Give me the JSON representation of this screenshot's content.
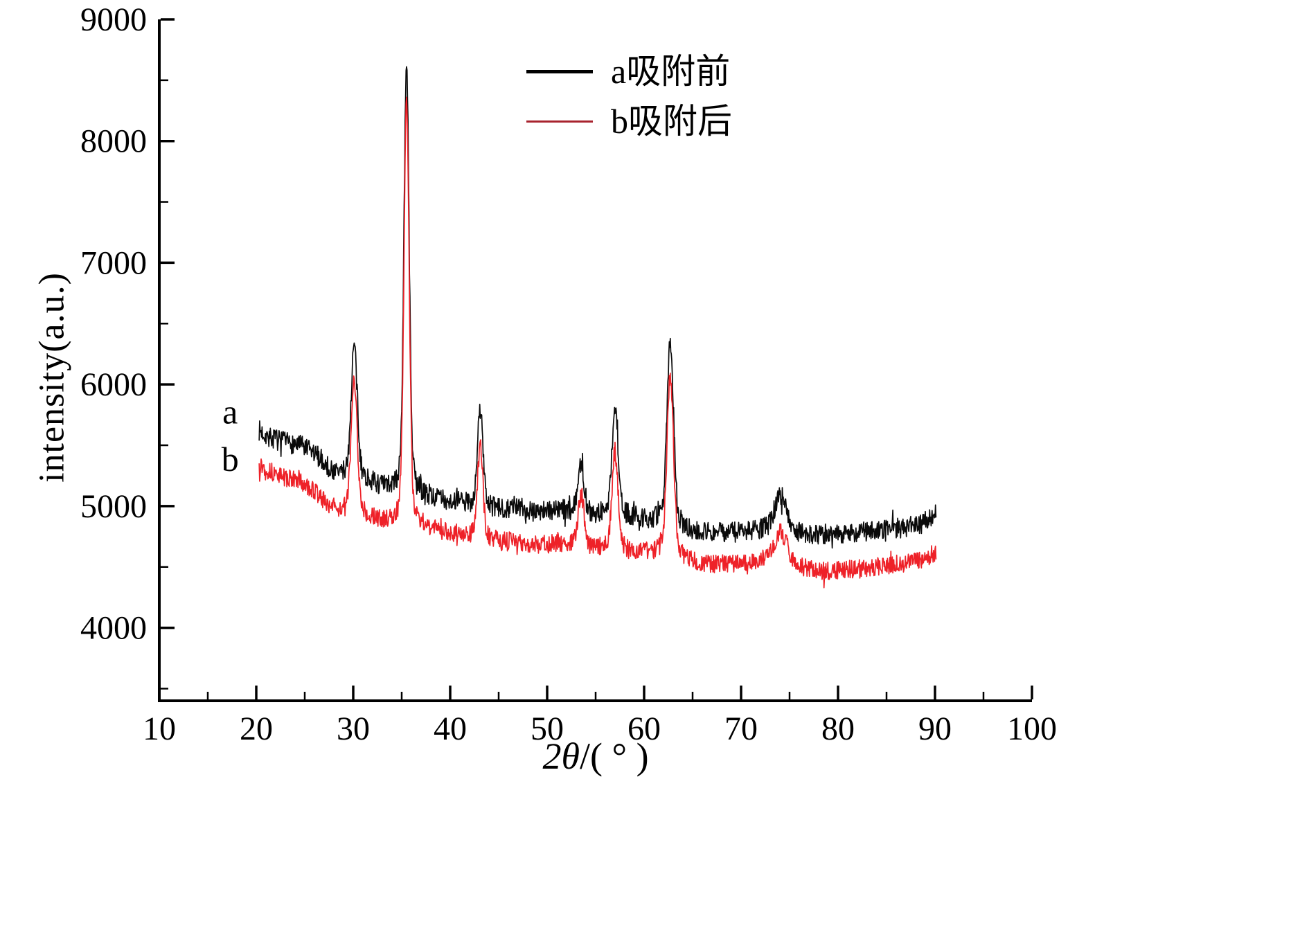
{
  "page": {
    "background": "#ffffff"
  },
  "chart_data": {
    "type": "line",
    "title": "",
    "xlabel": {
      "prefix": "2",
      "theta": "θ",
      "suffix": "/( ° )"
    },
    "ylabel": "intensity(a.u.)",
    "xlim": [
      10,
      100
    ],
    "ylim": [
      3400,
      9000
    ],
    "x_ticks": [
      10,
      20,
      30,
      40,
      50,
      60,
      70,
      80,
      90,
      100
    ],
    "x_minor_step": 5,
    "y_ticks": [
      4000,
      5000,
      6000,
      7000,
      8000,
      9000
    ],
    "y_minor_step": 500,
    "grid": false,
    "legend": {
      "position": "top-center",
      "entries": [
        {
          "key": "a",
          "label": "a吸附前",
          "color": "#000000"
        },
        {
          "key": "b",
          "label": "b吸附后",
          "color": "#a8232e"
        }
      ]
    },
    "annotations": [
      {
        "text": "a",
        "x": 17.3,
        "y": 5680
      },
      {
        "text": "b",
        "x": 17.3,
        "y": 5290
      }
    ],
    "series": [
      {
        "name": "a-before-adsorption",
        "label": "a吸附前",
        "color": "#0a0a0a",
        "seed": 7,
        "noise": 85,
        "x_start": 20.3,
        "x_end": 90.1,
        "peaks": [
          {
            "x": 30.1,
            "amp": 1070,
            "w": 0.3
          },
          {
            "x": 35.5,
            "amp": 3500,
            "w": 0.26
          },
          {
            "x": 43.1,
            "amp": 800,
            "w": 0.27
          },
          {
            "x": 53.5,
            "amp": 420,
            "w": 0.3
          },
          {
            "x": 57.0,
            "amp": 890,
            "w": 0.3
          },
          {
            "x": 62.7,
            "amp": 1500,
            "w": 0.33
          },
          {
            "x": 74.1,
            "amp": 290,
            "w": 0.6
          }
        ],
        "baseline": [
          [
            20.3,
            5620
          ],
          [
            21.5,
            5560
          ],
          [
            23,
            5520
          ],
          [
            24.5,
            5500
          ],
          [
            25.5,
            5450
          ],
          [
            26.5,
            5400
          ],
          [
            27.5,
            5300
          ],
          [
            28.5,
            5260
          ],
          [
            30,
            5250
          ],
          [
            31.5,
            5200
          ],
          [
            33,
            5150
          ],
          [
            34.5,
            5120
          ],
          [
            36,
            5100
          ],
          [
            37.5,
            5080
          ],
          [
            39,
            5050
          ],
          [
            40.5,
            5030
          ],
          [
            42,
            5010
          ],
          [
            43.5,
            4990
          ],
          [
            45,
            4970
          ],
          [
            46.5,
            4990
          ],
          [
            48,
            4970
          ],
          [
            49.5,
            4960
          ],
          [
            51,
            4970
          ],
          [
            52.5,
            4950
          ],
          [
            54,
            4930
          ],
          [
            55.5,
            4930
          ],
          [
            57,
            4920
          ],
          [
            58.5,
            4910
          ],
          [
            60,
            4890
          ],
          [
            61.5,
            4870
          ],
          [
            63,
            4840
          ],
          [
            64.5,
            4800
          ],
          [
            66,
            4790
          ],
          [
            67.5,
            4780
          ],
          [
            69,
            4780
          ],
          [
            70.5,
            4790
          ],
          [
            72,
            4800
          ],
          [
            73.5,
            4810
          ],
          [
            75,
            4790
          ],
          [
            76.5,
            4770
          ],
          [
            78,
            4760
          ],
          [
            79.5,
            4770
          ],
          [
            81,
            4780
          ],
          [
            82.5,
            4790
          ],
          [
            84,
            4800
          ],
          [
            85.5,
            4810
          ],
          [
            87,
            4830
          ],
          [
            88.5,
            4850
          ],
          [
            90.1,
            4930
          ]
        ]
      },
      {
        "name": "b-after-adsorption",
        "label": "b吸附后",
        "color": "#ee2128",
        "seed": 13,
        "noise": 75,
        "x_start": 20.3,
        "x_end": 90.1,
        "peaks": [
          {
            "x": 30.1,
            "amp": 1070,
            "w": 0.3
          },
          {
            "x": 35.5,
            "amp": 3480,
            "w": 0.26
          },
          {
            "x": 43.1,
            "amp": 760,
            "w": 0.27
          },
          {
            "x": 53.5,
            "amp": 440,
            "w": 0.3
          },
          {
            "x": 57.0,
            "amp": 810,
            "w": 0.3
          },
          {
            "x": 62.7,
            "amp": 1480,
            "w": 0.33
          },
          {
            "x": 74.1,
            "amp": 230,
            "w": 0.6
          }
        ],
        "baseline": [
          [
            20.3,
            5340
          ],
          [
            21.5,
            5280
          ],
          [
            23,
            5230
          ],
          [
            24.5,
            5200
          ],
          [
            25.5,
            5150
          ],
          [
            26.5,
            5080
          ],
          [
            27.5,
            5000
          ],
          [
            28.5,
            4960
          ],
          [
            30,
            4950
          ],
          [
            31.5,
            4910
          ],
          [
            33,
            4870
          ],
          [
            34.5,
            4850
          ],
          [
            36,
            4840
          ],
          [
            37.5,
            4820
          ],
          [
            39,
            4790
          ],
          [
            40.5,
            4770
          ],
          [
            42,
            4750
          ],
          [
            43.5,
            4730
          ],
          [
            45,
            4710
          ],
          [
            46.5,
            4710
          ],
          [
            48,
            4690
          ],
          [
            49.5,
            4680
          ],
          [
            51,
            4690
          ],
          [
            52.5,
            4670
          ],
          [
            54,
            4650
          ],
          [
            55.5,
            4650
          ],
          [
            57,
            4640
          ],
          [
            58.5,
            4630
          ],
          [
            60,
            4620
          ],
          [
            61.5,
            4610
          ],
          [
            63,
            4580
          ],
          [
            64.5,
            4550
          ],
          [
            66,
            4530
          ],
          [
            67.5,
            4520
          ],
          [
            69,
            4520
          ],
          [
            70.5,
            4530
          ],
          [
            72,
            4550
          ],
          [
            73.5,
            4560
          ],
          [
            75,
            4540
          ],
          [
            76.5,
            4490
          ],
          [
            78,
            4460
          ],
          [
            79.5,
            4470
          ],
          [
            81,
            4480
          ],
          [
            82.5,
            4490
          ],
          [
            84,
            4500
          ],
          [
            85.5,
            4510
          ],
          [
            87,
            4530
          ],
          [
            88.5,
            4550
          ],
          [
            90.1,
            4620
          ]
        ]
      }
    ]
  }
}
